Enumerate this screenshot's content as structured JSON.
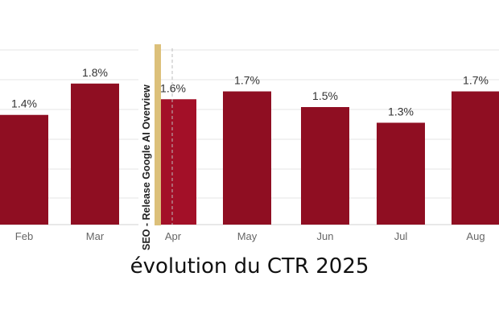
{
  "caption": "évolution du CTR 2025",
  "chart_data": {
    "type": "bar",
    "categories": [
      "Feb",
      "Mar",
      "Apr",
      "May",
      "Jun",
      "Jul",
      "Aug"
    ],
    "values": [
      1.4,
      1.8,
      1.6,
      1.7,
      1.5,
      1.3,
      1.7
    ],
    "value_labels": [
      "1.4%",
      "1.8%",
      "1.6%",
      "1.7%",
      "1.5%",
      "1.3%",
      "1.7%"
    ],
    "ylim": [
      0,
      2.25
    ],
    "grid": true,
    "annotation": {
      "text": "SEO - Release Google AI Overview",
      "before_category": "Apr"
    },
    "colors": {
      "bar": "#8f0e22",
      "bar_highlight": "#a31028",
      "annotation_band": "#dcc07a",
      "grid": "#e4e4e4",
      "axis_text": "#666666"
    }
  }
}
